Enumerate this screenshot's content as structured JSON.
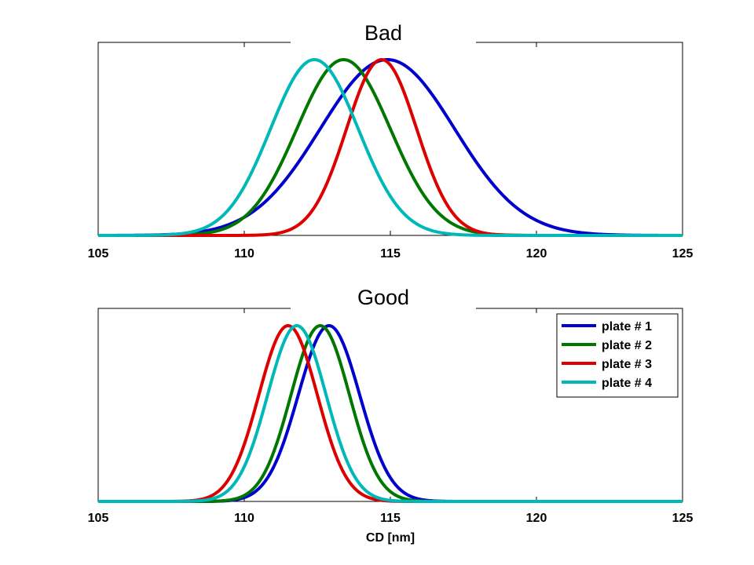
{
  "chart_data": [
    {
      "type": "line",
      "title": "Bad",
      "xlabel": "",
      "ylabel": "",
      "xlim": [
        105,
        125
      ],
      "xticks": [
        105,
        110,
        115,
        120,
        125
      ],
      "grid": false,
      "series": [
        {
          "name": "plate # 1",
          "color": "#0000cc",
          "mean": 114.9,
          "sd": 2.3
        },
        {
          "name": "plate # 2",
          "color": "#007700",
          "mean": 113.4,
          "sd": 1.6
        },
        {
          "name": "plate # 3",
          "color": "#dd0000",
          "mean": 114.7,
          "sd": 1.2
        },
        {
          "name": "plate # 4",
          "color": "#00b8b8",
          "mean": 112.4,
          "sd": 1.5
        }
      ]
    },
    {
      "type": "line",
      "title": "Good",
      "xlabel": "CD [nm]",
      "ylabel": "",
      "xlim": [
        105,
        125
      ],
      "xticks": [
        105,
        110,
        115,
        120,
        125
      ],
      "grid": false,
      "legend": "top-right",
      "series": [
        {
          "name": "plate # 1",
          "color": "#0000cc",
          "mean": 112.9,
          "sd": 1.05
        },
        {
          "name": "plate # 2",
          "color": "#007700",
          "mean": 112.6,
          "sd": 1.0
        },
        {
          "name": "plate # 3",
          "color": "#dd0000",
          "mean": 111.5,
          "sd": 1.0
        },
        {
          "name": "plate # 4",
          "color": "#00b8b8",
          "mean": 111.8,
          "sd": 1.0
        }
      ]
    }
  ]
}
